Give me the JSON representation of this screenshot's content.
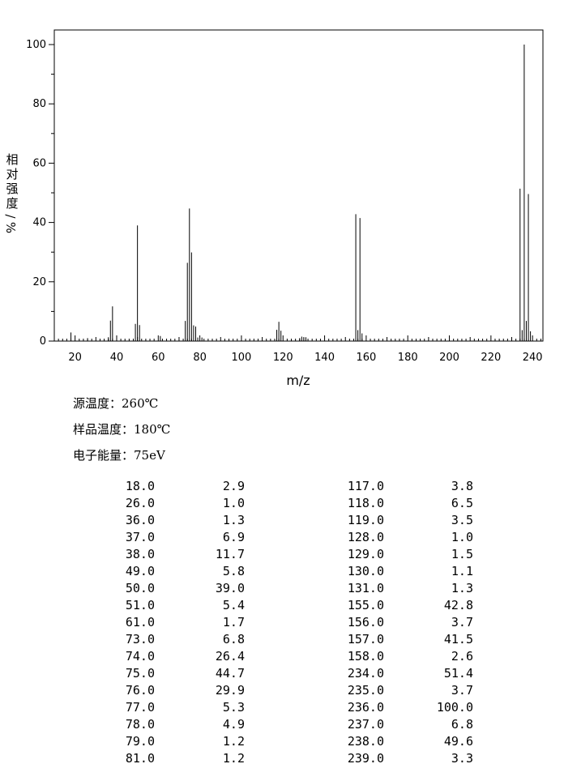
{
  "chart_data": {
    "type": "bar",
    "xlabel": "m/z",
    "ylabel": "相对强度/%",
    "xlim": [
      10,
      245
    ],
    "ylim": [
      0,
      105
    ],
    "x_ticks": [
      20,
      40,
      60,
      80,
      100,
      120,
      140,
      160,
      180,
      200,
      220,
      240
    ],
    "y_ticks": [
      0,
      20,
      40,
      60,
      80,
      100
    ],
    "x": [
      18,
      26,
      36,
      37,
      38,
      49,
      50,
      51,
      61,
      73,
      74,
      75,
      76,
      77,
      78,
      79,
      81,
      117,
      118,
      119,
      128,
      129,
      130,
      131,
      155,
      156,
      157,
      158,
      234,
      235,
      236,
      237,
      238,
      239
    ],
    "values": [
      2.9,
      1.0,
      1.3,
      6.9,
      11.7,
      5.8,
      39.0,
      5.4,
      1.7,
      6.8,
      26.4,
      44.7,
      29.9,
      5.3,
      4.9,
      1.2,
      1.2,
      3.8,
      6.5,
      3.5,
      1.0,
      1.5,
      1.1,
      1.3,
      42.8,
      3.7,
      41.5,
      2.6,
      51.4,
      3.7,
      100.0,
      6.8,
      49.6,
      3.3
    ]
  },
  "conditions": {
    "source_temp": "源温度：260℃",
    "sample_temp": "样品温度：180℃",
    "electron_energy": "电子能量：75eV"
  },
  "peak_table": {
    "left": [
      [
        "18.0",
        "2.9"
      ],
      [
        "26.0",
        "1.0"
      ],
      [
        "36.0",
        "1.3"
      ],
      [
        "37.0",
        "6.9"
      ],
      [
        "38.0",
        "11.7"
      ],
      [
        "49.0",
        "5.8"
      ],
      [
        "50.0",
        "39.0"
      ],
      [
        "51.0",
        "5.4"
      ],
      [
        "61.0",
        "1.7"
      ],
      [
        "73.0",
        "6.8"
      ],
      [
        "74.0",
        "26.4"
      ],
      [
        "75.0",
        "44.7"
      ],
      [
        "76.0",
        "29.9"
      ],
      [
        "77.0",
        "5.3"
      ],
      [
        "78.0",
        "4.9"
      ],
      [
        "79.0",
        "1.2"
      ],
      [
        "81.0",
        "1.2"
      ]
    ],
    "right": [
      [
        "117.0",
        "3.8"
      ],
      [
        "118.0",
        "6.5"
      ],
      [
        "119.0",
        "3.5"
      ],
      [
        "128.0",
        "1.0"
      ],
      [
        "129.0",
        "1.5"
      ],
      [
        "130.0",
        "1.1"
      ],
      [
        "131.0",
        "1.3"
      ],
      [
        "155.0",
        "42.8"
      ],
      [
        "156.0",
        "3.7"
      ],
      [
        "157.0",
        "41.5"
      ],
      [
        "158.0",
        "2.6"
      ],
      [
        "234.0",
        "51.4"
      ],
      [
        "235.0",
        "3.7"
      ],
      [
        "236.0",
        "100.0"
      ],
      [
        "237.0",
        "6.8"
      ],
      [
        "238.0",
        "49.6"
      ],
      [
        "239.0",
        "3.3"
      ]
    ]
  }
}
